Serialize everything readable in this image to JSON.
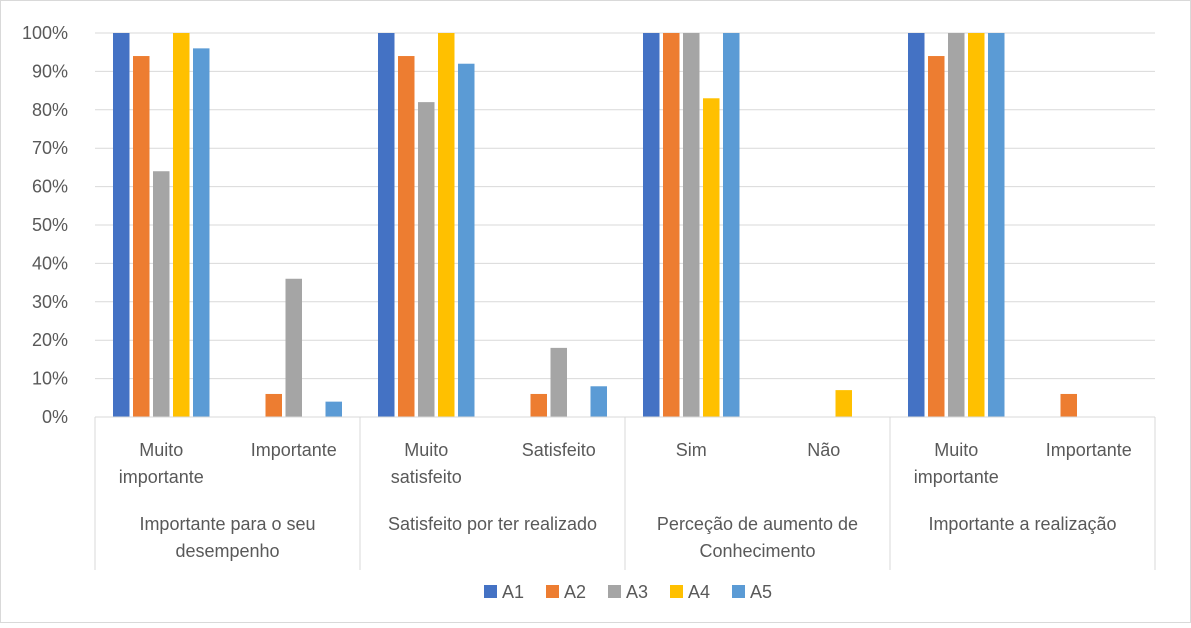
{
  "chart_data": {
    "type": "bar",
    "title": "",
    "xlabel": "",
    "ylabel": "",
    "ylim": [
      0,
      100
    ],
    "y_ticks": [
      0,
      10,
      20,
      30,
      40,
      50,
      60,
      70,
      80,
      90,
      100
    ],
    "y_tick_format": "{v}%",
    "grid": true,
    "legend_position": "bottom",
    "groups": [
      {
        "label_lines": [
          "Importante para o seu",
          "desempenho"
        ],
        "categories": [
          [
            "Muito",
            "importante"
          ],
          [
            "Importante"
          ]
        ]
      },
      {
        "label_lines": [
          "Satisfeito por ter realizado"
        ],
        "categories": [
          [
            "Muito",
            "satisfeito"
          ],
          [
            "Satisfeito"
          ]
        ]
      },
      {
        "label_lines": [
          "Perceção de aumento de",
          "Conhecimento"
        ],
        "categories": [
          [
            "Sim"
          ],
          [
            "Não"
          ]
        ]
      },
      {
        "label_lines": [
          "Importante a realização"
        ],
        "categories": [
          [
            "Muito",
            "importante"
          ],
          [
            "Importante"
          ]
        ]
      }
    ],
    "series": [
      {
        "name": "A1",
        "color": "#4472C4",
        "values": [
          100,
          0,
          100,
          0,
          100,
          0,
          100,
          0
        ]
      },
      {
        "name": "A2",
        "color": "#ED7D31",
        "values": [
          94,
          6,
          94,
          6,
          100,
          0,
          94,
          6
        ]
      },
      {
        "name": "A3",
        "color": "#A5A5A5",
        "values": [
          64,
          36,
          82,
          18,
          100,
          0,
          100,
          0
        ]
      },
      {
        "name": "A4",
        "color": "#FFC000",
        "values": [
          100,
          0,
          100,
          0,
          83,
          7,
          100,
          0
        ]
      },
      {
        "name": "A5",
        "color": "#5B9BD5",
        "values": [
          96,
          4,
          92,
          8,
          100,
          0,
          100,
          0
        ]
      }
    ]
  }
}
